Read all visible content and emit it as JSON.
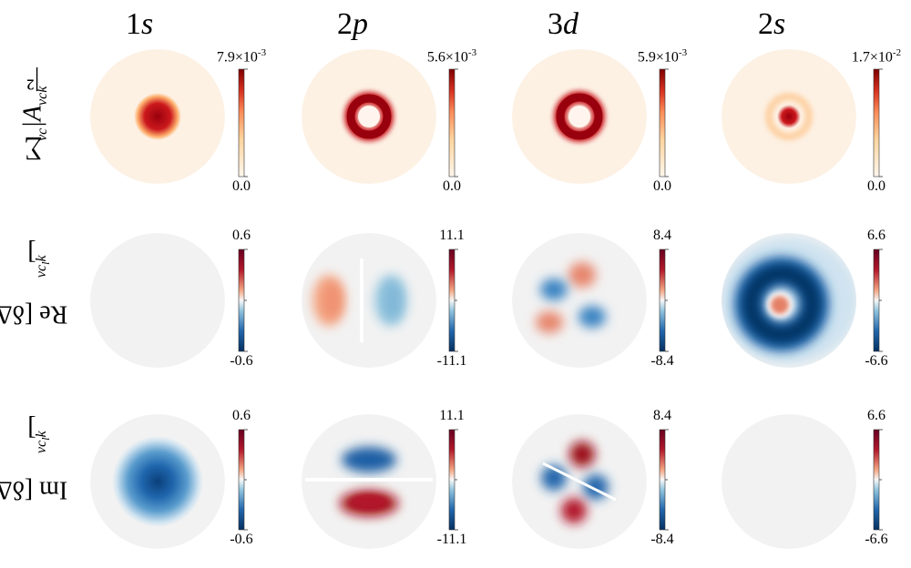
{
  "chart_data": {
    "type": "heatmap",
    "description_units": "grid of 12 circular density maps with colorbars",
    "columns": [
      "1s",
      "2p",
      "3d",
      "2s"
    ],
    "column_labels": [
      {
        "num": "1",
        "letter": "s"
      },
      {
        "num": "2",
        "letter": "p"
      },
      {
        "num": "3",
        "letter": "d"
      },
      {
        "num": "2",
        "letter": "s"
      }
    ],
    "rows": [
      {
        "label_main": "∑",
        "label_sub": "vc",
        "label_rest": "|A",
        "label_sub2": "vck",
        "label_tail": "|²"
      },
      {
        "label_main": "Re [δΔ",
        "label_sub": "vc",
        "label_sub2": "l",
        "label_tail": "k]"
      },
      {
        "label_main": "Im [δΔ",
        "label_sub": "vc",
        "label_sub2": "l",
        "label_tail": "k]"
      }
    ],
    "row_label_text": [
      "∑vc|Avck|²",
      "Re [δΔvclk]",
      "Im [δΔvclk]"
    ],
    "colorbar_limits": [
      [
        {
          "max": "7.9×10⁻³",
          "min": "0.0",
          "max_m": "7.9×10",
          "max_e": "-3"
        },
        {
          "max": "5.6×10⁻³",
          "min": "0.0",
          "max_m": "5.6×10",
          "max_e": "-3"
        },
        {
          "max": "5.9×10⁻³",
          "min": "0.0",
          "max_m": "5.9×10",
          "max_e": "-3"
        },
        {
          "max": "1.7×10⁻²",
          "min": "0.0",
          "max_m": "1.7×10",
          "max_e": "-2"
        }
      ],
      [
        {
          "max": "0.6",
          "min": "-0.6"
        },
        {
          "max": "11.1",
          "min": "-11.1"
        },
        {
          "max": "8.4",
          "min": "-8.4"
        },
        {
          "max": "6.6",
          "min": "-6.6"
        }
      ],
      [
        {
          "max": "0.6",
          "min": "-0.6"
        },
        {
          "max": "11.1",
          "min": "-11.1"
        },
        {
          "max": "8.4",
          "min": "-8.4"
        },
        {
          "max": "6.6",
          "min": "-6.6"
        }
      ]
    ],
    "colormaps": [
      "sequential-white-to-red",
      "diverging-blue-white-red",
      "diverging-blue-white-red"
    ],
    "panels": [
      [
        {
          "pattern": "central-peak",
          "sign": 1,
          "strength": 1.0
        },
        {
          "pattern": "ring",
          "sign": 1,
          "strength": 1.0
        },
        {
          "pattern": "ring",
          "sign": 1,
          "strength": 1.0
        },
        {
          "pattern": "small-peak-with-ring",
          "sign": 1,
          "strength": 1.0
        }
      ],
      [
        {
          "pattern": "flat",
          "sign": 1,
          "strength": 0.02
        },
        {
          "pattern": "dipole-horizontal",
          "sign": 1,
          "strength": 0.6
        },
        {
          "pattern": "quadrupole-diagonal",
          "sign": 1,
          "strength": 0.7
        },
        {
          "pattern": "ring-negative-center-positive",
          "sign": 1,
          "strength": 1.0
        }
      ],
      [
        {
          "pattern": "central-peak-wide",
          "sign": -1,
          "strength": 0.9
        },
        {
          "pattern": "dipole-vertical",
          "sign": 1,
          "strength": 1.0
        },
        {
          "pattern": "quadrupole-offdiagonal",
          "sign": 1,
          "strength": 1.0
        },
        {
          "pattern": "flat",
          "sign": 1,
          "strength": 0.02
        }
      ]
    ],
    "colors": {
      "dark_red": "#9b0a17",
      "red": "#d6604d",
      "light_red": "#f4a582",
      "cream": "#fdf3ea",
      "white": "#f7f7f7",
      "light_blue": "#92c5de",
      "blue": "#2166ac",
      "dark_blue": "#053061",
      "seq_low": "#fff9ef",
      "seq_mid": "#fdae6b",
      "seq_high": "#99000d"
    }
  }
}
